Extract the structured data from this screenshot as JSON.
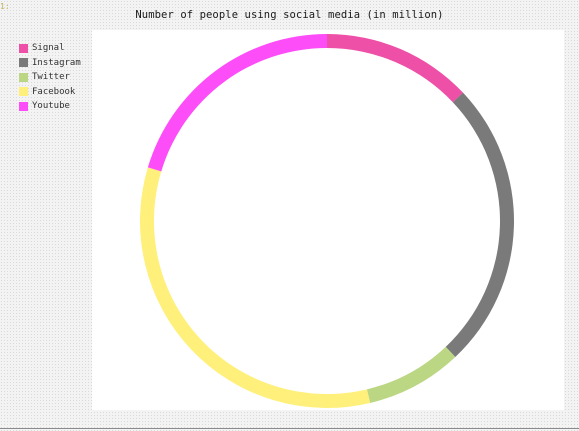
{
  "chart_data": {
    "type": "pie",
    "variant": "donut",
    "title": "Number of people using social media (in million)",
    "categories": [
      "Signal",
      "Instagram",
      "Twitter",
      "Facebook",
      "Youtube"
    ],
    "values": [
      14,
      27,
      9,
      36,
      22
    ],
    "colors": [
      "#ee4fa7",
      "#7a7a7a",
      "#bbd783",
      "#fff07c",
      "#fd4df8"
    ],
    "legend": "top-left",
    "start_angle_deg": 0,
    "direction": "clockwise"
  },
  "legend_items": [
    {
      "label": "Signal",
      "color": "#ee4fa7"
    },
    {
      "label": "Instagram",
      "color": "#7a7a7a"
    },
    {
      "label": "Twitter",
      "color": "#bbd783"
    },
    {
      "label": "Facebook",
      "color": "#fff07c"
    },
    {
      "label": "Youtube",
      "color": "#fd4df8"
    }
  ],
  "corner_mark": "1:"
}
